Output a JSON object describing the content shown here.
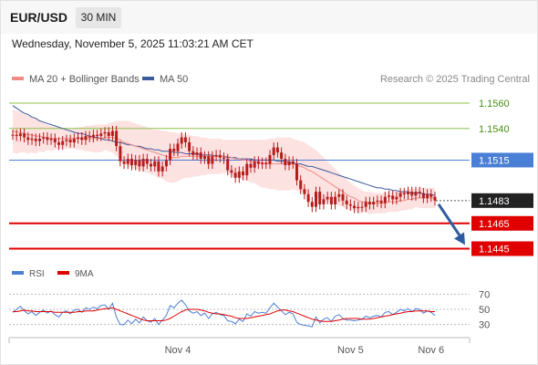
{
  "header": {
    "pair": "EUR/USD",
    "timeframe": "30 MIN",
    "datetime": "Wednesday, November 5, 2025 11:03:21 AM CET"
  },
  "legend": {
    "ma20_label": "MA 20 + Bollinger Bands",
    "ma50_label": "MA 50",
    "research_label": "Research © 2025 Trading Central"
  },
  "colors": {
    "ma20": "#f28b82",
    "ma50": "#3b5b9d",
    "band_fill": "#fde2e2",
    "candle": "#b71c1c",
    "target_line": "#8bc34a",
    "pivot_line": "#4a7fd6",
    "support_line": "#e00000",
    "arrow": "#2f5c9e",
    "rsi": "#4a7fd6",
    "rsi_ma": "#e00000"
  },
  "levels": [
    {
      "value": 1.156,
      "label": "1.1560",
      "kind": "target"
    },
    {
      "value": 1.154,
      "label": "1.1540",
      "kind": "target"
    },
    {
      "value": 1.1515,
      "label": "1.1515",
      "kind": "pivot"
    },
    {
      "value": 1.1483,
      "label": "1.1483",
      "kind": "last"
    },
    {
      "value": 1.1465,
      "label": "1.1465",
      "kind": "support"
    },
    {
      "value": 1.1445,
      "label": "1.1445",
      "kind": "support"
    }
  ],
  "chart_data": {
    "type": "candlestick",
    "instrument": "EUR/USD",
    "interval": "30 MIN",
    "y_range": [
      1.1436,
      1.1573
    ],
    "x_ticks": [
      {
        "label": "Nov 4",
        "index": 43
      },
      {
        "label": "Nov 5",
        "index": 88
      },
      {
        "label": "Nov 6",
        "index": 109
      }
    ],
    "close": [
      1.1535,
      1.1534,
      1.1536,
      1.1533,
      1.1531,
      1.1532,
      1.153,
      1.1532,
      1.1533,
      1.1531,
      1.1532,
      1.1529,
      1.1527,
      1.153,
      1.1531,
      1.1529,
      1.1532,
      1.1533,
      1.1531,
      1.1534,
      1.1533,
      1.1535,
      1.1534,
      1.1536,
      1.1537,
      1.1534,
      1.1538,
      1.1526,
      1.1514,
      1.1512,
      1.1516,
      1.1511,
      1.1515,
      1.151,
      1.1516,
      1.1512,
      1.151,
      1.1514,
      1.1506,
      1.151,
      1.1515,
      1.1524,
      1.1522,
      1.1528,
      1.1533,
      1.1529,
      1.1522,
      1.1519,
      1.1521,
      1.1516,
      1.1518,
      1.1512,
      1.1518,
      1.1519,
      1.1517,
      1.1516,
      1.1507,
      1.1505,
      1.1501,
      1.1506,
      1.1503,
      1.1512,
      1.1509,
      1.1514,
      1.1512,
      1.1513,
      1.1512,
      1.1519,
      1.1525,
      1.1521,
      1.1516,
      1.1511,
      1.1514,
      1.1512,
      1.1499,
      1.1492,
      1.1488,
      1.1482,
      1.1478,
      1.149,
      1.148,
      1.1484,
      1.1486,
      1.148,
      1.1486,
      1.1488,
      1.1483,
      1.148,
      1.1479,
      1.1477,
      1.1478,
      1.1478,
      1.1482,
      1.148,
      1.1482,
      1.1483,
      1.1481,
      1.1486,
      1.1487,
      1.1484,
      1.1486,
      1.1489,
      1.1488,
      1.149,
      1.1487,
      1.149,
      1.1489,
      1.1485,
      1.1488,
      1.1486,
      1.1483
    ],
    "ma20": [
      1.1538,
      1.1537,
      1.1537,
      1.1536,
      1.1535,
      1.1535,
      1.1534,
      1.1534,
      1.1533,
      1.1533,
      1.1532,
      1.1532,
      1.1532,
      1.1532,
      1.1532,
      1.1532,
      1.1532,
      1.1532,
      1.1532,
      1.1532,
      1.1532,
      1.1532,
      1.1532,
      1.1532,
      1.1533,
      1.1533,
      1.1533,
      1.1532,
      1.1531,
      1.1529,
      1.1528,
      1.1527,
      1.1526,
      1.1525,
      1.1524,
      1.1523,
      1.1522,
      1.1521,
      1.152,
      1.1519,
      1.1518,
      1.1517,
      1.1517,
      1.1517,
      1.1518,
      1.1518,
      1.1518,
      1.1518,
      1.1518,
      1.1518,
      1.1518,
      1.1518,
      1.1518,
      1.1518,
      1.1518,
      1.1518,
      1.1518,
      1.1517,
      1.1516,
      1.1516,
      1.1515,
      1.1515,
      1.1514,
      1.1514,
      1.1513,
      1.1512,
      1.1512,
      1.1512,
      1.1512,
      1.1512,
      1.1512,
      1.1512,
      1.1512,
      1.1512,
      1.1511,
      1.151,
      1.1509,
      1.1507,
      1.1506,
      1.1504,
      1.1502,
      1.15,
      1.1498,
      1.1496,
      1.1494,
      1.1492,
      1.149,
      1.1488,
      1.1486,
      1.1485,
      1.1483,
      1.1482,
      1.1482,
      1.1481,
      1.1481,
      1.1481,
      1.1481,
      1.1481,
      1.1482,
      1.1482,
      1.1482,
      1.1483,
      1.1483,
      1.1484,
      1.1484,
      1.1485,
      1.1485,
      1.1485,
      1.1485,
      1.1485,
      1.1485
    ],
    "ma50": [
      1.1558,
      1.1556,
      1.1554,
      1.1552,
      1.1551,
      1.1549,
      1.1548,
      1.1546,
      1.1545,
      1.1544,
      1.1543,
      1.1542,
      1.1541,
      1.154,
      1.1539,
      1.1538,
      1.1537,
      1.1536,
      1.1536,
      1.1535,
      1.1534,
      1.1533,
      1.1533,
      1.1532,
      1.1531,
      1.1531,
      1.153,
      1.1529,
      1.1529,
      1.1528,
      1.1527,
      1.1527,
      1.1526,
      1.1526,
      1.1525,
      1.1524,
      1.1524,
      1.1523,
      1.1523,
      1.1522,
      1.1522,
      1.1522,
      1.1521,
      1.1521,
      1.1521,
      1.152,
      1.152,
      1.152,
      1.152,
      1.1519,
      1.1519,
      1.1519,
      1.1519,
      1.1518,
      1.1518,
      1.1518,
      1.1517,
      1.1517,
      1.1517,
      1.1516,
      1.1516,
      1.1516,
      1.1516,
      1.1515,
      1.1515,
      1.1515,
      1.1515,
      1.1515,
      1.1515,
      1.1514,
      1.1514,
      1.1514,
      1.1513,
      1.1513,
      1.1512,
      1.1512,
      1.1511,
      1.151,
      1.151,
      1.1509,
      1.1508,
      1.1507,
      1.1506,
      1.1505,
      1.1504,
      1.1503,
      1.1502,
      1.1501,
      1.15,
      1.1499,
      1.1498,
      1.1497,
      1.1496,
      1.1495,
      1.1494,
      1.1493,
      1.1493,
      1.1492,
      1.1492,
      1.1491,
      1.1491,
      1.149,
      1.149,
      1.149,
      1.1489,
      1.1489,
      1.1489,
      1.1488,
      1.1488,
      1.1488,
      1.1487
    ],
    "bb_upper": [
      1.1555,
      1.1554,
      1.1553,
      1.1551,
      1.155,
      1.1549,
      1.1548,
      1.1546,
      1.1545,
      1.1543,
      1.1542,
      1.1541,
      1.154,
      1.154,
      1.154,
      1.154,
      1.154,
      1.1541,
      1.1541,
      1.1542,
      1.1542,
      1.1543,
      1.1543,
      1.1543,
      1.1543,
      1.1544,
      1.1545,
      1.1546,
      1.1546,
      1.1546,
      1.1546,
      1.1545,
      1.1544,
      1.1543,
      1.1542,
      1.1541,
      1.154,
      1.1539,
      1.1539,
      1.1538,
      1.1538,
      1.1537,
      1.1537,
      1.1536,
      1.1536,
      1.1535,
      1.1535,
      1.1534,
      1.1534,
      1.1533,
      1.1533,
      1.1532,
      1.1532,
      1.1532,
      1.1532,
      1.1531,
      1.1531,
      1.1531,
      1.1531,
      1.1531,
      1.1531,
      1.1531,
      1.1531,
      1.1531,
      1.1531,
      1.1531,
      1.1531,
      1.1532,
      1.1532,
      1.1533,
      1.1533,
      1.1533,
      1.1533,
      1.1532,
      1.1531,
      1.153,
      1.1529,
      1.1527,
      1.1525,
      1.1523,
      1.152,
      1.1517,
      1.1514,
      1.1511,
      1.1508,
      1.1505,
      1.1502,
      1.15,
      1.1497,
      1.1495,
      1.1493,
      1.1491,
      1.149,
      1.149,
      1.1489,
      1.1489,
      1.1489,
      1.1489,
      1.149,
      1.149,
      1.149,
      1.1491,
      1.1491,
      1.1492,
      1.1492,
      1.1492,
      1.1493,
      1.1493,
      1.1493,
      1.1493,
      1.1493
    ],
    "bb_lower": [
      1.1521,
      1.152,
      1.1521,
      1.1521,
      1.152,
      1.1521,
      1.152,
      1.1522,
      1.1521,
      1.1523,
      1.1522,
      1.1523,
      1.1524,
      1.1524,
      1.1524,
      1.1524,
      1.1524,
      1.1523,
      1.1523,
      1.1522,
      1.1522,
      1.1521,
      1.1521,
      1.1521,
      1.1523,
      1.1522,
      1.1521,
      1.1518,
      1.1516,
      1.1512,
      1.151,
      1.1509,
      1.1508,
      1.1507,
      1.1506,
      1.1505,
      1.1504,
      1.1503,
      1.1501,
      1.15,
      1.1498,
      1.1497,
      1.1497,
      1.1498,
      1.15,
      1.1501,
      1.1501,
      1.1502,
      1.1502,
      1.1503,
      1.1503,
      1.1504,
      1.1504,
      1.1504,
      1.1504,
      1.1505,
      1.1505,
      1.1503,
      1.1501,
      1.1501,
      1.1499,
      1.1499,
      1.1497,
      1.1497,
      1.1495,
      1.1493,
      1.1493,
      1.1492,
      1.1492,
      1.1491,
      1.1491,
      1.1491,
      1.1491,
      1.1492,
      1.1491,
      1.149,
      1.1489,
      1.1487,
      1.1487,
      1.1485,
      1.1484,
      1.1483,
      1.1482,
      1.1481,
      1.148,
      1.1479,
      1.1478,
      1.1476,
      1.1475,
      1.1475,
      1.1473,
      1.1473,
      1.1474,
      1.1472,
      1.1473,
      1.1473,
      1.1473,
      1.1473,
      1.1474,
      1.1474,
      1.1474,
      1.1475,
      1.1475,
      1.1476,
      1.1476,
      1.1478,
      1.1477,
      1.1477,
      1.1477,
      1.1477,
      1.1477
    ],
    "forecast_arrow": {
      "from": 1.1483,
      "to": 1.1445
    },
    "rsi_panel": {
      "legend": [
        "RSI",
        "9MA"
      ],
      "y_ticks": [
        70,
        50,
        30
      ],
      "y_range": [
        20,
        80
      ],
      "rsi": [
        46,
        50,
        54,
        48,
        44,
        47,
        42,
        46,
        49,
        45,
        48,
        43,
        40,
        46,
        48,
        44,
        49,
        50,
        46,
        52,
        50,
        53,
        51,
        55,
        56,
        50,
        58,
        40,
        30,
        30,
        36,
        31,
        37,
        32,
        40,
        35,
        33,
        38,
        30,
        36,
        42,
        55,
        52,
        58,
        62,
        56,
        48,
        45,
        47,
        42,
        45,
        38,
        44,
        46,
        43,
        42,
        35,
        34,
        31,
        37,
        34,
        44,
        41,
        47,
        45,
        46,
        45,
        52,
        58,
        53,
        48,
        43,
        46,
        44,
        33,
        30,
        29,
        28,
        27,
        40,
        32,
        37,
        39,
        34,
        41,
        43,
        38,
        36,
        36,
        35,
        36,
        37,
        41,
        39,
        41,
        42,
        40,
        46,
        47,
        43,
        46,
        50,
        48,
        51,
        47,
        51,
        50,
        45,
        48,
        46,
        42
      ],
      "rsi_ma": [
        47,
        47,
        48,
        49,
        48,
        48,
        47,
        47,
        47,
        47,
        47,
        46,
        46,
        46,
        46,
        46,
        46,
        47,
        47,
        48,
        48,
        48,
        49,
        50,
        51,
        51,
        52,
        50,
        48,
        46,
        44,
        42,
        40,
        38,
        36,
        35,
        35,
        35,
        35,
        35,
        36,
        38,
        41,
        44,
        47,
        49,
        50,
        50,
        50,
        49,
        48,
        46,
        45,
        44,
        44,
        43,
        42,
        41,
        39,
        38,
        38,
        38,
        39,
        40,
        41,
        42,
        43,
        44,
        46,
        48,
        49,
        49,
        48,
        47,
        45,
        43,
        41,
        39,
        37,
        36,
        35,
        34,
        34,
        34,
        35,
        36,
        37,
        38,
        38,
        38,
        38,
        37,
        37,
        37,
        38,
        39,
        40,
        41,
        42,
        43,
        44,
        45,
        46,
        47,
        47,
        48,
        48,
        48,
        48,
        47,
        47
      ]
    }
  }
}
